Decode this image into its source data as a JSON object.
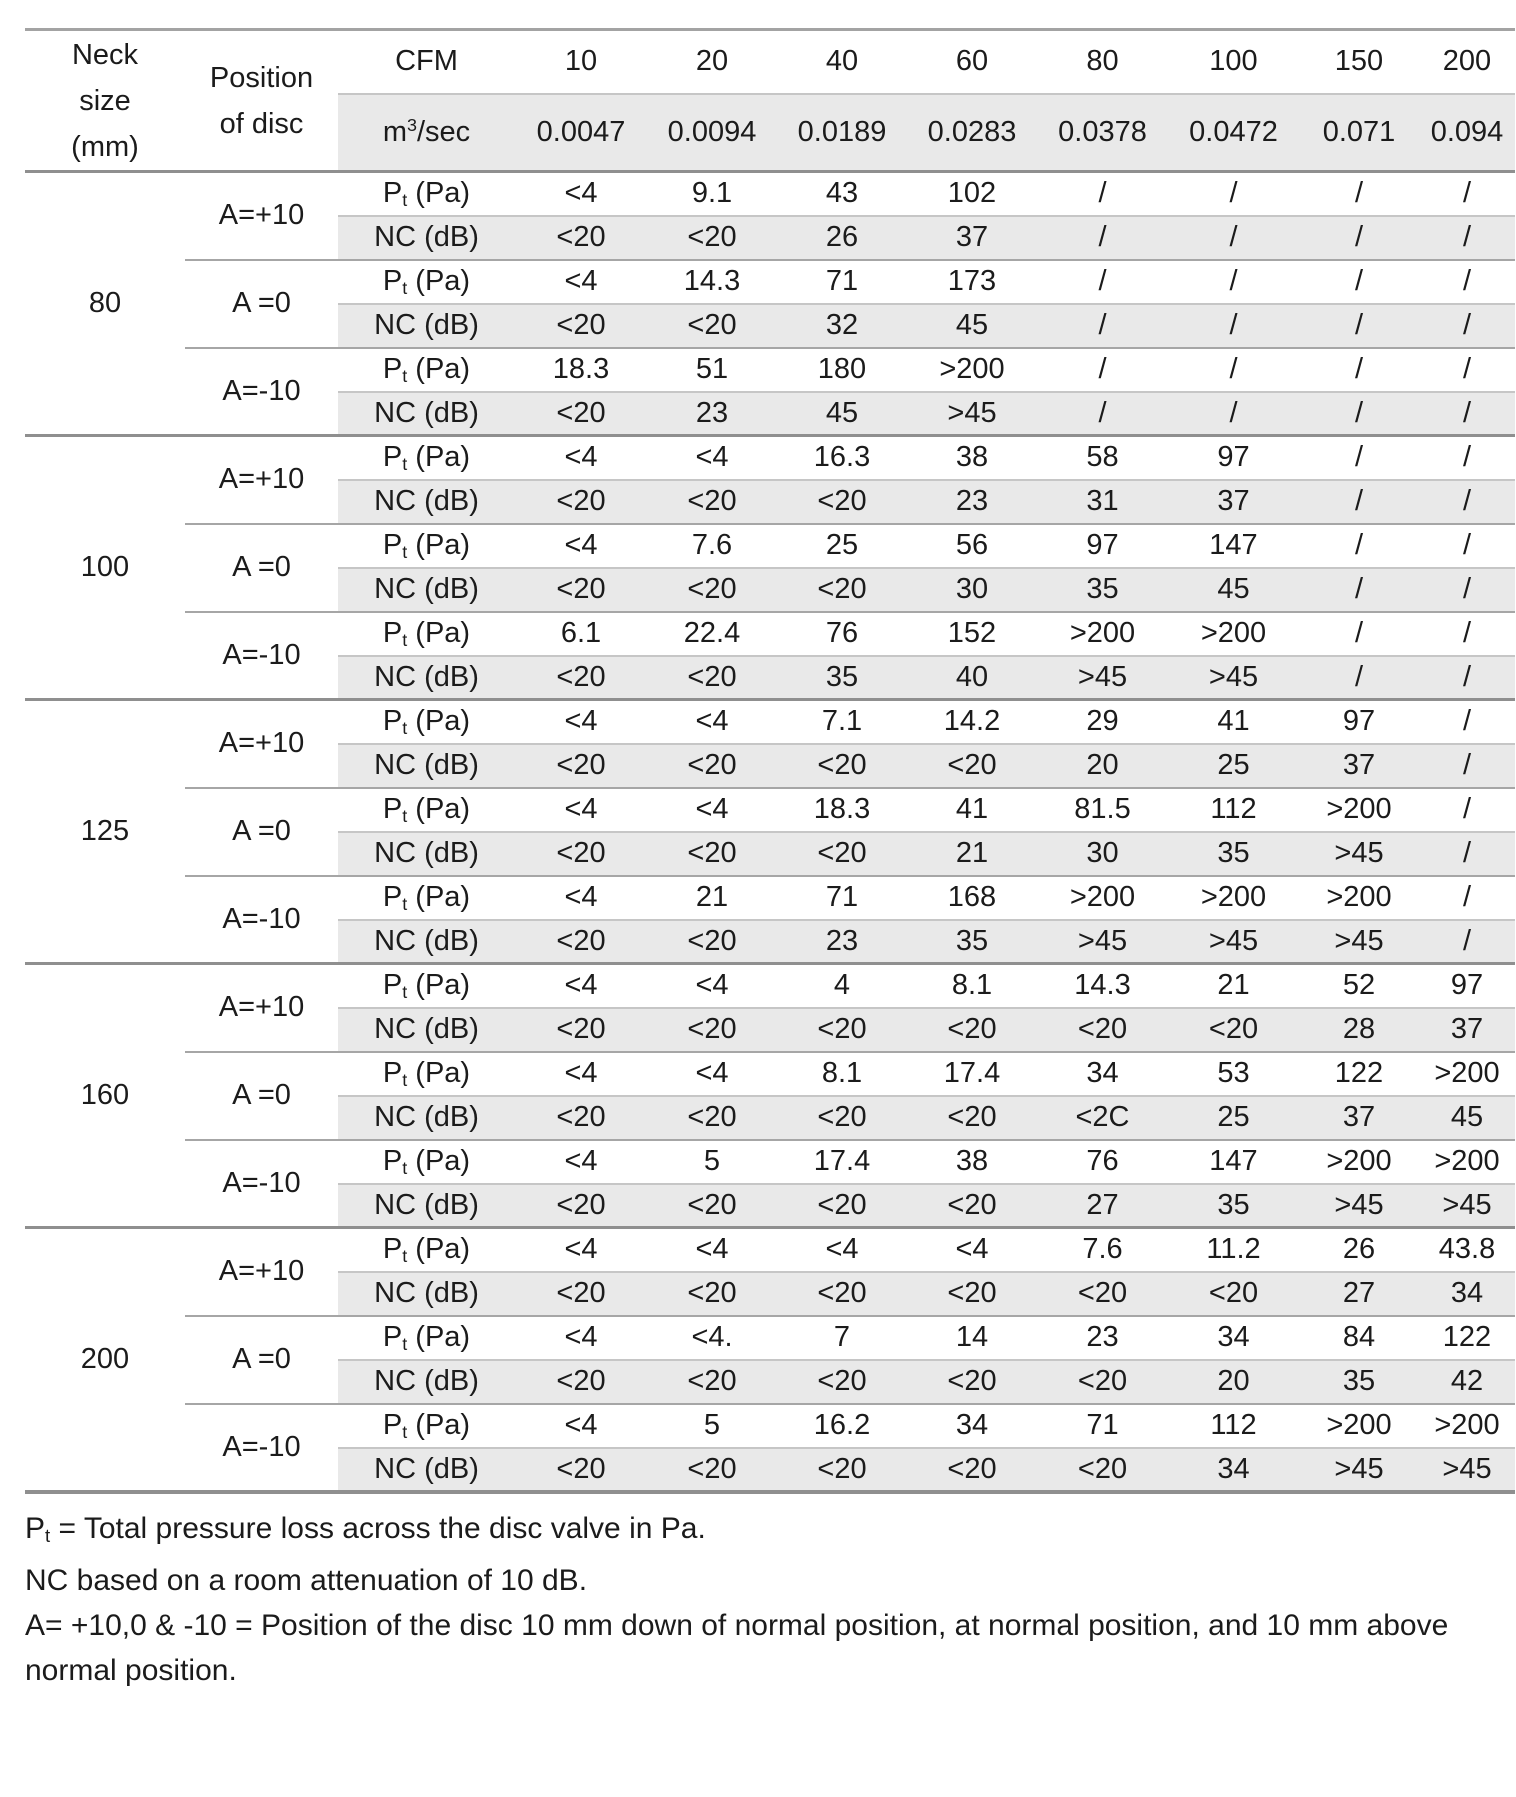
{
  "table": {
    "header": {
      "neck_size_lines": [
        "Neck",
        "size",
        "(mm)"
      ],
      "position_lines": [
        "Position",
        "of disc"
      ],
      "cfm_label": "CFM",
      "cfm_values": [
        "10",
        "20",
        "40",
        "60",
        "80",
        "100",
        "150",
        "200"
      ],
      "flow_label": {
        "base": "m",
        "sup": "3",
        "rest": "/sec"
      },
      "flow_values": [
        "0.0047",
        "0.0094",
        "0.0189",
        "0.0283",
        "0.0378",
        "0.0472",
        "0.071",
        "0.094"
      ]
    },
    "row_labels": {
      "pt": {
        "base": "P",
        "sub": "t",
        "rest": " (Pa)"
      },
      "nc": "NC (dB)"
    },
    "groups": [
      {
        "neck_size": "80",
        "positions": [
          {
            "label": "A=+10",
            "pt": [
              "<4",
              "9.1",
              "43",
              "102",
              "/",
              "/",
              "/",
              "/"
            ],
            "nc": [
              "<20",
              "<20",
              "26",
              "37",
              "/",
              "/",
              "/",
              "/"
            ]
          },
          {
            "label": "A =0",
            "pt": [
              "<4",
              "14.3",
              "71",
              "173",
              "/",
              "/",
              "/",
              "/"
            ],
            "nc": [
              "<20",
              "<20",
              "32",
              "45",
              "/",
              "/",
              "/",
              "/"
            ]
          },
          {
            "label": "A=-10",
            "pt": [
              "18.3",
              "51",
              "180",
              ">200",
              "/",
              "/",
              "/",
              "/"
            ],
            "nc": [
              "<20",
              "23",
              "45",
              ">45",
              "/",
              "/",
              "/",
              "/"
            ]
          }
        ]
      },
      {
        "neck_size": "100",
        "positions": [
          {
            "label": "A=+10",
            "pt": [
              "<4",
              "<4",
              "16.3",
              "38",
              "58",
              "97",
              "/",
              "/"
            ],
            "nc": [
              "<20",
              "<20",
              "<20",
              "23",
              "31",
              "37",
              "/",
              "/"
            ]
          },
          {
            "label": "A =0",
            "pt": [
              "<4",
              "7.6",
              "25",
              "56",
              "97",
              "147",
              "/",
              "/"
            ],
            "nc": [
              "<20",
              "<20",
              "<20",
              "30",
              "35",
              "45",
              "/",
              "/"
            ]
          },
          {
            "label": "A=-10",
            "pt": [
              "6.1",
              "22.4",
              "76",
              "152",
              ">200",
              ">200",
              "/",
              "/"
            ],
            "nc": [
              "<20",
              "<20",
              "35",
              "40",
              ">45",
              ">45",
              "/",
              "/"
            ]
          }
        ]
      },
      {
        "neck_size": "125",
        "positions": [
          {
            "label": "A=+10",
            "pt": [
              "<4",
              "<4",
              "7.1",
              "14.2",
              "29",
              "41",
              "97",
              "/"
            ],
            "nc": [
              "<20",
              "<20",
              "<20",
              "<20",
              "20",
              "25",
              "37",
              "/"
            ]
          },
          {
            "label": "A =0",
            "pt": [
              "<4",
              "<4",
              "18.3",
              "41",
              "81.5",
              "112",
              ">200",
              "/"
            ],
            "nc": [
              "<20",
              "<20",
              "<20",
              "21",
              "30",
              "35",
              ">45",
              "/"
            ]
          },
          {
            "label": "A=-10",
            "pt": [
              "<4",
              "21",
              "71",
              "168",
              ">200",
              ">200",
              ">200",
              "/"
            ],
            "nc": [
              "<20",
              "<20",
              "23",
              "35",
              ">45",
              ">45",
              ">45",
              "/"
            ]
          }
        ]
      },
      {
        "neck_size": "160",
        "positions": [
          {
            "label": "A=+10",
            "pt": [
              "<4",
              "<4",
              "4",
              "8.1",
              "14.3",
              "21",
              "52",
              "97"
            ],
            "nc": [
              "<20",
              "<20",
              "<20",
              "<20",
              "<20",
              "<20",
              "28",
              "37"
            ]
          },
          {
            "label": "A =0",
            "pt": [
              "<4",
              "<4",
              "8.1",
              "17.4",
              "34",
              "53",
              "122",
              ">200"
            ],
            "nc": [
              "<20",
              "<20",
              "<20",
              "<20",
              "<2C",
              "25",
              "37",
              "45"
            ]
          },
          {
            "label": "A=-10",
            "pt": [
              "<4",
              "5",
              "17.4",
              "38",
              "76",
              "147",
              ">200",
              ">200"
            ],
            "nc": [
              "<20",
              "<20",
              "<20",
              "<20",
              "27",
              "35",
              ">45",
              ">45"
            ]
          }
        ]
      },
      {
        "neck_size": "200",
        "positions": [
          {
            "label": "A=+10",
            "pt": [
              "<4",
              "<4",
              "<4",
              "<4",
              "7.6",
              "11.2",
              "26",
              "43.8"
            ],
            "nc": [
              "<20",
              "<20",
              "<20",
              "<20",
              "<20",
              "<20",
              "27",
              "34"
            ]
          },
          {
            "label": "A =0",
            "pt": [
              "<4",
              "<4.",
              "7",
              "14",
              "23",
              "34",
              "84",
              "122"
            ],
            "nc": [
              "<20",
              "<20",
              "<20",
              "<20",
              "<20",
              "20",
              "35",
              "42"
            ]
          },
          {
            "label": "A=-10",
            "pt": [
              "<4",
              "5",
              "16.2",
              "34",
              "71",
              "112",
              ">200",
              ">200"
            ],
            "nc": [
              "<20",
              "<20",
              "<20",
              "<20",
              "<20",
              "34",
              ">45",
              ">45"
            ]
          }
        ]
      }
    ]
  },
  "notes": {
    "pt_note": {
      "base": "P",
      "sub": "t",
      "rest": " = Total pressure loss across the disc valve in Pa."
    },
    "nc_note": "NC based on a room attenuation of 10 dB.",
    "position_note": "A= +10,0 & -10 = Position of the disc 10 mm down of normal position, at normal position, and 10 mm above normal position."
  },
  "colors": {
    "stripe_background": "#e9e9e9",
    "rule_dark": "#8f8f8f",
    "rule_mid": "#a6a6a6",
    "rule_light": "#c6c6c6",
    "text": "#1b1b1b"
  }
}
